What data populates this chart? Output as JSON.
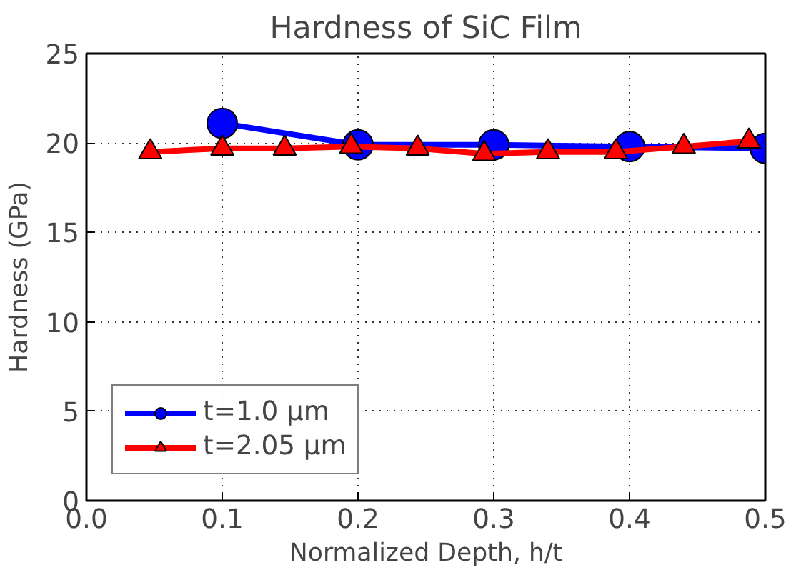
{
  "chart_data": {
    "type": "line",
    "title": "Hardness of SiC Film",
    "xlabel": "Normalized Depth, h/t",
    "ylabel": "Hardness (GPa)",
    "xlim": [
      0,
      0.5
    ],
    "ylim": [
      0,
      25
    ],
    "xticks": [
      {
        "value": 0,
        "label": "0.0"
      },
      0.1,
      0.2,
      0.3,
      0.4,
      0.5
    ],
    "yticks": [
      0,
      5,
      10,
      15,
      20,
      25
    ],
    "grid": true,
    "legend": "bottom left",
    "series": [
      {
        "name": "t=1.0 μm",
        "color": "#0000ff",
        "marker": "circle",
        "x": [
          0.1,
          0.2,
          0.3,
          0.4,
          0.5
        ],
        "values": [
          21.1,
          19.9,
          19.9,
          19.8,
          19.7
        ]
      },
      {
        "name": "t=2.05 μm",
        "color": "#ff0000",
        "marker": "triangle",
        "x": [
          0.047,
          0.1,
          0.146,
          0.195,
          0.244,
          0.293,
          0.34,
          0.39,
          0.44,
          0.488
        ],
        "values": [
          19.5,
          19.7,
          19.7,
          19.8,
          19.7,
          19.4,
          19.5,
          19.5,
          19.8,
          20.1
        ]
      }
    ]
  }
}
